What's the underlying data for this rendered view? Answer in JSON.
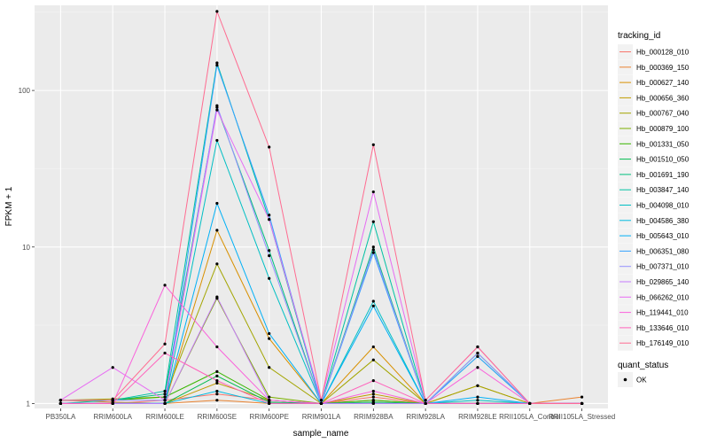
{
  "chart_data": {
    "type": "line",
    "xlabel": "sample_name",
    "ylabel": "FPKM + 1",
    "y_scale": "log10",
    "ylim": [
      0.93,
      350
    ],
    "yticks": [
      1,
      10,
      100
    ],
    "ytick_labels": [
      "1",
      "10",
      "100"
    ],
    "grid": true,
    "legend_position": "right",
    "categories": [
      "PB350LA",
      "RRIM600LA",
      "RRIM600LE",
      "RRIM600SE",
      "RRIM600PE",
      "RRIM901LA",
      "RRIM928BA",
      "RRIM928LA",
      "RRIM928LE",
      "RRII105LA_Control",
      "RRII105LA_Stressed"
    ],
    "legend": {
      "title": "tracking_id",
      "entries": [
        "Hb_000128_010",
        "Hb_000369_150",
        "Hb_000627_140",
        "Hb_000656_360",
        "Hb_000767_040",
        "Hb_000879_100",
        "Hb_001331_050",
        "Hb_001510_050",
        "Hb_001691_190",
        "Hb_003847_140",
        "Hb_004098_010",
        "Hb_004586_380",
        "Hb_005643_010",
        "Hb_006351_080",
        "Hb_007371_010",
        "Hb_029865_140",
        "Hb_066262_010",
        "Hb_119441_010",
        "Hb_133646_010",
        "Hb_176149_010"
      ]
    },
    "shape_legend": {
      "title": "quant_status",
      "entries": [
        "OK"
      ]
    },
    "colors": [
      "#F8766D",
      "#EA8331",
      "#D89000",
      "#C09B00",
      "#A3A500",
      "#7CAE00",
      "#39B600",
      "#00BB4E",
      "#00BF7D",
      "#00C1A3",
      "#00BFC4",
      "#00BAE0",
      "#00B0F6",
      "#35A2FF",
      "#9590FF",
      "#C77CFF",
      "#E76BF3",
      "#FA62DB",
      "#FF62BC",
      "#FF6C91"
    ],
    "series": [
      {
        "name": "Hb_000128_010",
        "values": [
          1.0,
          1.0,
          1.05,
          1.15,
          1.05,
          1.0,
          1.1,
          1.0,
          1.0,
          1.0,
          1.0
        ]
      },
      {
        "name": "Hb_000369_150",
        "values": [
          1.05,
          1.02,
          1.0,
          1.05,
          1.0,
          1.0,
          1.05,
          1.0,
          1.0,
          1.0,
          1.1
        ]
      },
      {
        "name": "Hb_000627_140",
        "values": [
          1.0,
          1.0,
          1.0,
          12.8,
          2.6,
          1.0,
          2.3,
          1.0,
          1.3,
          1.0,
          1.0
        ]
      },
      {
        "name": "Hb_000656_360",
        "values": [
          1.0,
          1.0,
          1.0,
          1.35,
          1.05,
          1.0,
          1.15,
          1.0,
          1.0,
          1.0,
          1.0
        ]
      },
      {
        "name": "Hb_000767_040",
        "values": [
          1.05,
          1.07,
          1.1,
          7.8,
          1.7,
          1.0,
          1.9,
          1.0,
          1.3,
          1.0,
          1.0
        ]
      },
      {
        "name": "Hb_000879_100",
        "values": [
          1.0,
          1.0,
          1.0,
          4.7,
          1.1,
          1.0,
          1.0,
          1.0,
          1.0,
          1.0,
          1.0
        ]
      },
      {
        "name": "Hb_001331_050",
        "values": [
          1.05,
          1.05,
          1.1,
          1.6,
          1.05,
          1.0,
          1.05,
          1.0,
          1.0,
          1.0,
          1.0
        ]
      },
      {
        "name": "Hb_001510_050",
        "values": [
          1.0,
          1.0,
          1.0,
          1.5,
          1.02,
          1.0,
          1.02,
          1.0,
          1.0,
          1.0,
          1.0
        ]
      },
      {
        "name": "Hb_001691_190",
        "values": [
          1.05,
          1.05,
          1.15,
          78.0,
          9.5,
          1.0,
          10.0,
          1.0,
          2.1,
          1.0,
          1.0
        ]
      },
      {
        "name": "Hb_003847_140",
        "values": [
          1.0,
          1.05,
          1.2,
          150.0,
          15.0,
          1.0,
          14.5,
          1.0,
          2.0,
          1.0,
          1.0
        ]
      },
      {
        "name": "Hb_004098_010",
        "values": [
          1.0,
          1.0,
          1.0,
          48.0,
          6.3,
          1.0,
          4.5,
          1.0,
          1.05,
          1.0,
          1.0
        ]
      },
      {
        "name": "Hb_004586_380",
        "values": [
          1.0,
          1.0,
          1.0,
          1.2,
          1.0,
          1.0,
          1.0,
          1.0,
          1.0,
          1.0,
          1.0
        ]
      },
      {
        "name": "Hb_005643_010",
        "values": [
          1.0,
          1.0,
          1.0,
          19.0,
          2.8,
          1.0,
          4.2,
          1.0,
          1.1,
          1.0,
          1.0
        ]
      },
      {
        "name": "Hb_006351_080",
        "values": [
          1.0,
          1.0,
          1.0,
          145.0,
          16.0,
          1.0,
          9.2,
          1.0,
          2.0,
          1.0,
          1.0
        ]
      },
      {
        "name": "Hb_007371_010",
        "values": [
          1.05,
          1.05,
          1.05,
          80.0,
          8.8,
          1.0,
          9.6,
          1.0,
          2.1,
          1.0,
          1.0
        ]
      },
      {
        "name": "Hb_029865_140",
        "values": [
          1.0,
          1.0,
          1.0,
          4.8,
          1.05,
          1.0,
          1.0,
          1.0,
          1.0,
          1.0,
          1.0
        ]
      },
      {
        "name": "Hb_066262_010",
        "values": [
          1.05,
          1.7,
          1.05,
          75.0,
          15.0,
          1.05,
          22.5,
          1.05,
          2.3,
          1.0,
          1.0
        ]
      },
      {
        "name": "Hb_119441_010",
        "values": [
          1.0,
          1.0,
          5.7,
          2.3,
          1.05,
          1.0,
          1.2,
          1.0,
          1.7,
          1.0,
          1.0
        ]
      },
      {
        "name": "Hb_133646_010",
        "values": [
          1.0,
          1.0,
          2.1,
          1.4,
          1.0,
          1.0,
          1.4,
          1.0,
          1.0,
          1.0,
          1.0
        ]
      },
      {
        "name": "Hb_176149_010",
        "values": [
          1.05,
          1.05,
          2.4,
          320.0,
          43.5,
          1.05,
          45.0,
          1.05,
          2.3,
          1.0,
          1.0
        ]
      }
    ]
  }
}
